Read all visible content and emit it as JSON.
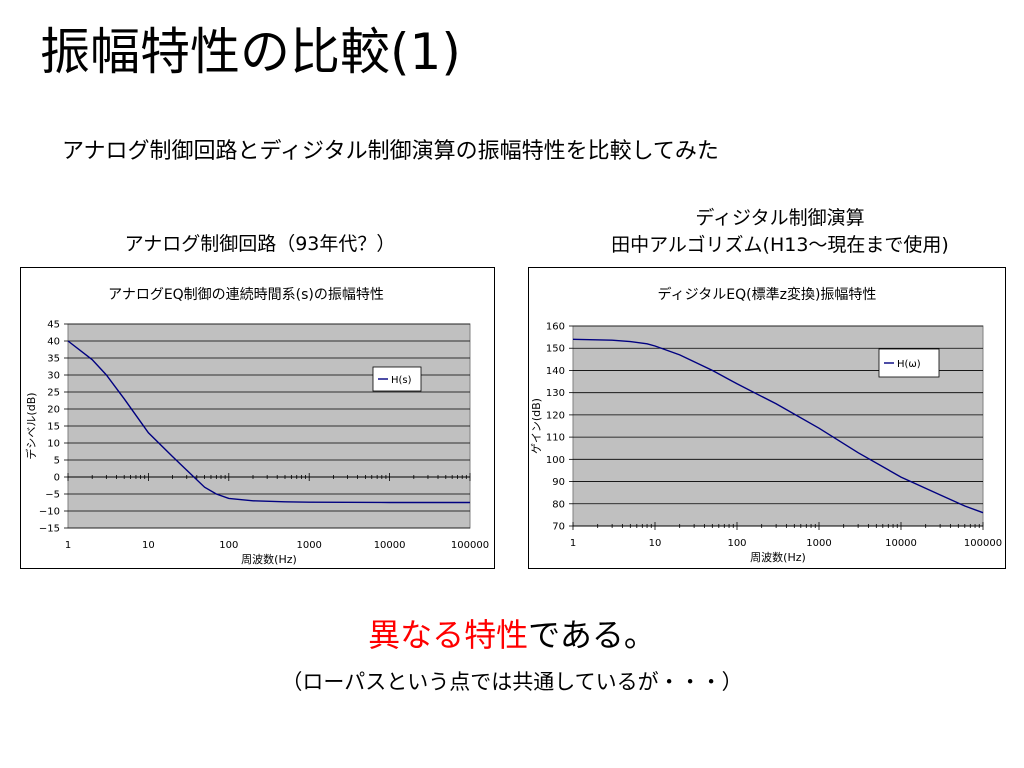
{
  "slide": {
    "title": "振幅特性の比較(1)",
    "subtitle": "アナログ制御回路とディジタル制御演算の振幅特性を比較してみた",
    "left_caption": "アナログ制御回路（93年代？）",
    "right_caption_line1": "ディジタル制御演算",
    "right_caption_line2": "田中アルゴリズム(H13～現在まで使用)",
    "conclusion_red": "異なる特性",
    "conclusion_black": "である。",
    "note": "（ローパスという点では共通しているが・・・）"
  },
  "colors": {
    "plot_bg": "#c0c0c0",
    "grid": "#000000",
    "line": "#000080",
    "accent_red": "#ff0000"
  },
  "chart_data": [
    {
      "type": "line",
      "title": "アナログEQ制御の連続時間系(s)の振幅特性",
      "xlabel": "周波数(Hz)",
      "ylabel": "デシベル(dB)",
      "xscale": "log",
      "xlim": [
        1,
        100000
      ],
      "ylim": [
        -15,
        45
      ],
      "xticks": [
        "1",
        "10",
        "100",
        "1000",
        "10000",
        "100000"
      ],
      "yticks": [
        "45",
        "40",
        "35",
        "30",
        "25",
        "20",
        "15",
        "10",
        "5",
        "0",
        "−5",
        "−10",
        "−15"
      ],
      "grid": true,
      "legend_position": "right",
      "series": [
        {
          "name": "H(s)",
          "x": [
            1,
            2,
            3,
            5,
            10,
            20,
            30,
            50,
            70,
            100,
            200,
            500,
            1000,
            10000,
            100000
          ],
          "y": [
            40,
            34.5,
            30,
            23,
            13,
            6,
            2,
            -3,
            -5,
            -6.3,
            -7,
            -7.3,
            -7.4,
            -7.5,
            -7.5
          ]
        }
      ]
    },
    {
      "type": "line",
      "title": "ディジタルEQ(標準z変換)振幅特性",
      "xlabel": "周波数(Hz)",
      "ylabel": "ゲイン(dB)",
      "xscale": "log",
      "xlim": [
        1,
        100000
      ],
      "ylim": [
        70,
        160
      ],
      "xticks": [
        "1",
        "10",
        "100",
        "1000",
        "10000",
        "100000"
      ],
      "yticks": [
        "160",
        "150",
        "140",
        "130",
        "120",
        "110",
        "100",
        "90",
        "80",
        "70"
      ],
      "grid": true,
      "legend_position": "right",
      "series": [
        {
          "name": "H(ω)",
          "x": [
            1,
            3,
            5,
            8,
            10,
            20,
            50,
            100,
            300,
            1000,
            3000,
            10000,
            30000,
            60000,
            100000
          ],
          "y": [
            154,
            153.6,
            153,
            152,
            151,
            147,
            140,
            134,
            125,
            114,
            103,
            92,
            84,
            79,
            76
          ]
        }
      ]
    }
  ]
}
